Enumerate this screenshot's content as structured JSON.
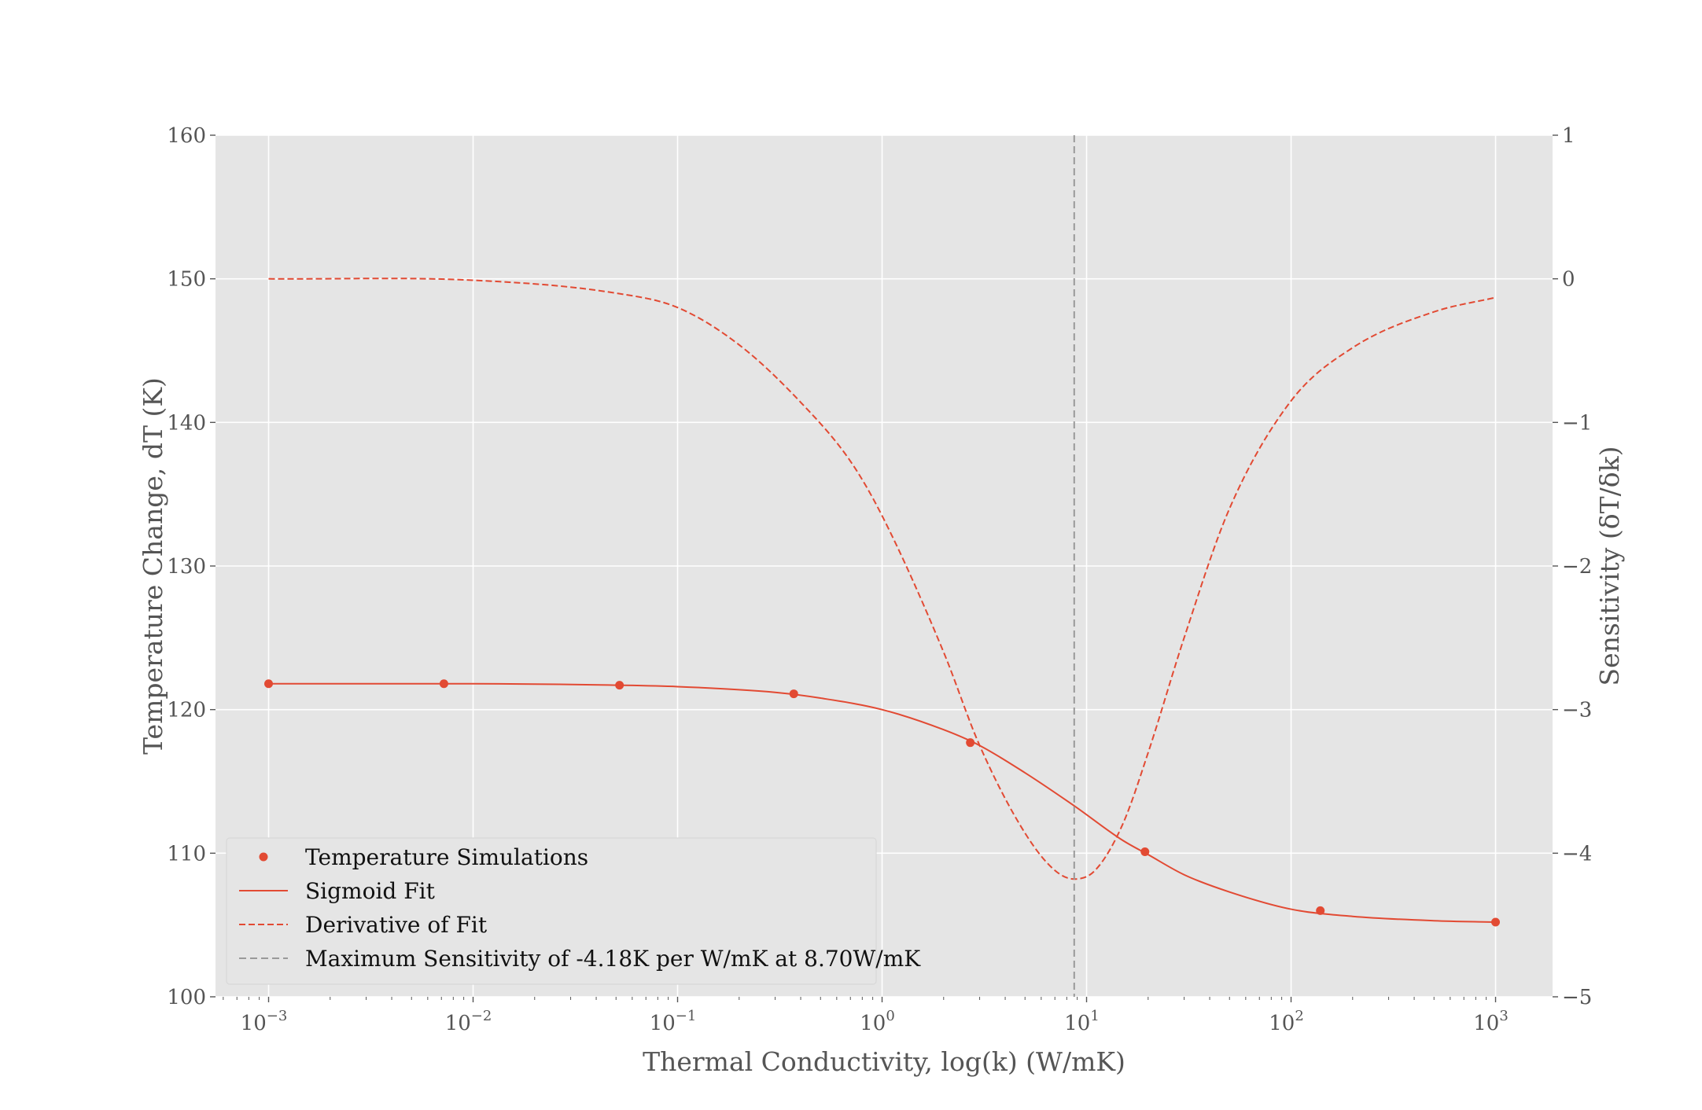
{
  "chart_data": {
    "type": "line",
    "title": "",
    "xlabel": "Thermal Conductivity, log(k) (W/mK)",
    "ylabel": "Temperature Change, dT (K)",
    "y2label": "Sensitivity (δT/δk)",
    "x_scale": "log",
    "xlim": [
      0.00055,
      1900
    ],
    "ylim": [
      100,
      160
    ],
    "y2lim": [
      -5,
      1
    ],
    "x_tick_values": [
      0.001,
      0.01,
      0.1,
      1,
      10,
      100,
      1000
    ],
    "x_tick_labels": [
      {
        "base": "10",
        "exp": "−3"
      },
      {
        "base": "10",
        "exp": "−2"
      },
      {
        "base": "10",
        "exp": "−1"
      },
      {
        "base": "10",
        "exp": "0"
      },
      {
        "base": "10",
        "exp": "1"
      },
      {
        "base": "10",
        "exp": "2"
      },
      {
        "base": "10",
        "exp": "3"
      }
    ],
    "y_ticks": [
      100,
      110,
      120,
      130,
      140,
      150,
      160
    ],
    "y2_ticks": [
      -5,
      -4,
      -3,
      -2,
      -1,
      0,
      1
    ],
    "y2_tick_labels": [
      "−5",
      "−4",
      "−3",
      "−2",
      "−1",
      "0",
      "1"
    ],
    "grid": true,
    "background": "#e5e5e5",
    "legend_position": "lower-left",
    "series": [
      {
        "name": "Temperature Simulations",
        "style": "markers",
        "axis": "left",
        "color": "#e24a33",
        "x": [
          0.001,
          0.0072,
          0.052,
          0.37,
          2.7,
          19.3,
          139,
          1000
        ],
        "y": [
          121.8,
          121.8,
          121.7,
          121.1,
          117.7,
          110.1,
          106.0,
          105.2
        ]
      },
      {
        "name": "Sigmoid Fit",
        "style": "solid",
        "axis": "left",
        "color": "#e24a33",
        "x": [
          0.001,
          0.01,
          0.05,
          0.1,
          0.3,
          0.5,
          1,
          2,
          3,
          5,
          8.7,
          15,
          20,
          30,
          50,
          100,
          200,
          500,
          1000
        ],
        "y": [
          121.8,
          121.8,
          121.7,
          121.6,
          121.2,
          120.8,
          120.0,
          118.6,
          117.5,
          115.6,
          113.3,
          110.9,
          109.9,
          108.5,
          107.3,
          106.1,
          105.6,
          105.3,
          105.2
        ]
      },
      {
        "name": "Derivative of Fit",
        "style": "dashed",
        "axis": "right",
        "color": "#e24a33",
        "x": [
          0.001,
          0.01,
          0.05,
          0.1,
          0.2,
          0.4,
          0.7,
          1,
          2,
          3,
          5,
          7,
          8.7,
          11,
          15,
          20,
          30,
          50,
          100,
          200,
          500,
          1000
        ],
        "y": [
          0.0,
          -0.01,
          -0.1,
          -0.2,
          -0.46,
          -0.86,
          -1.27,
          -1.65,
          -2.6,
          -3.25,
          -3.86,
          -4.12,
          -4.18,
          -4.12,
          -3.8,
          -3.3,
          -2.5,
          -1.6,
          -0.85,
          -0.48,
          -0.23,
          -0.13
        ]
      },
      {
        "name": "Maximum Sensitivity of -4.18K per W/mK at 8.70W/mK",
        "style": "vline",
        "axis": "left",
        "color": "#999999",
        "x": [
          8.7
        ]
      }
    ]
  }
}
